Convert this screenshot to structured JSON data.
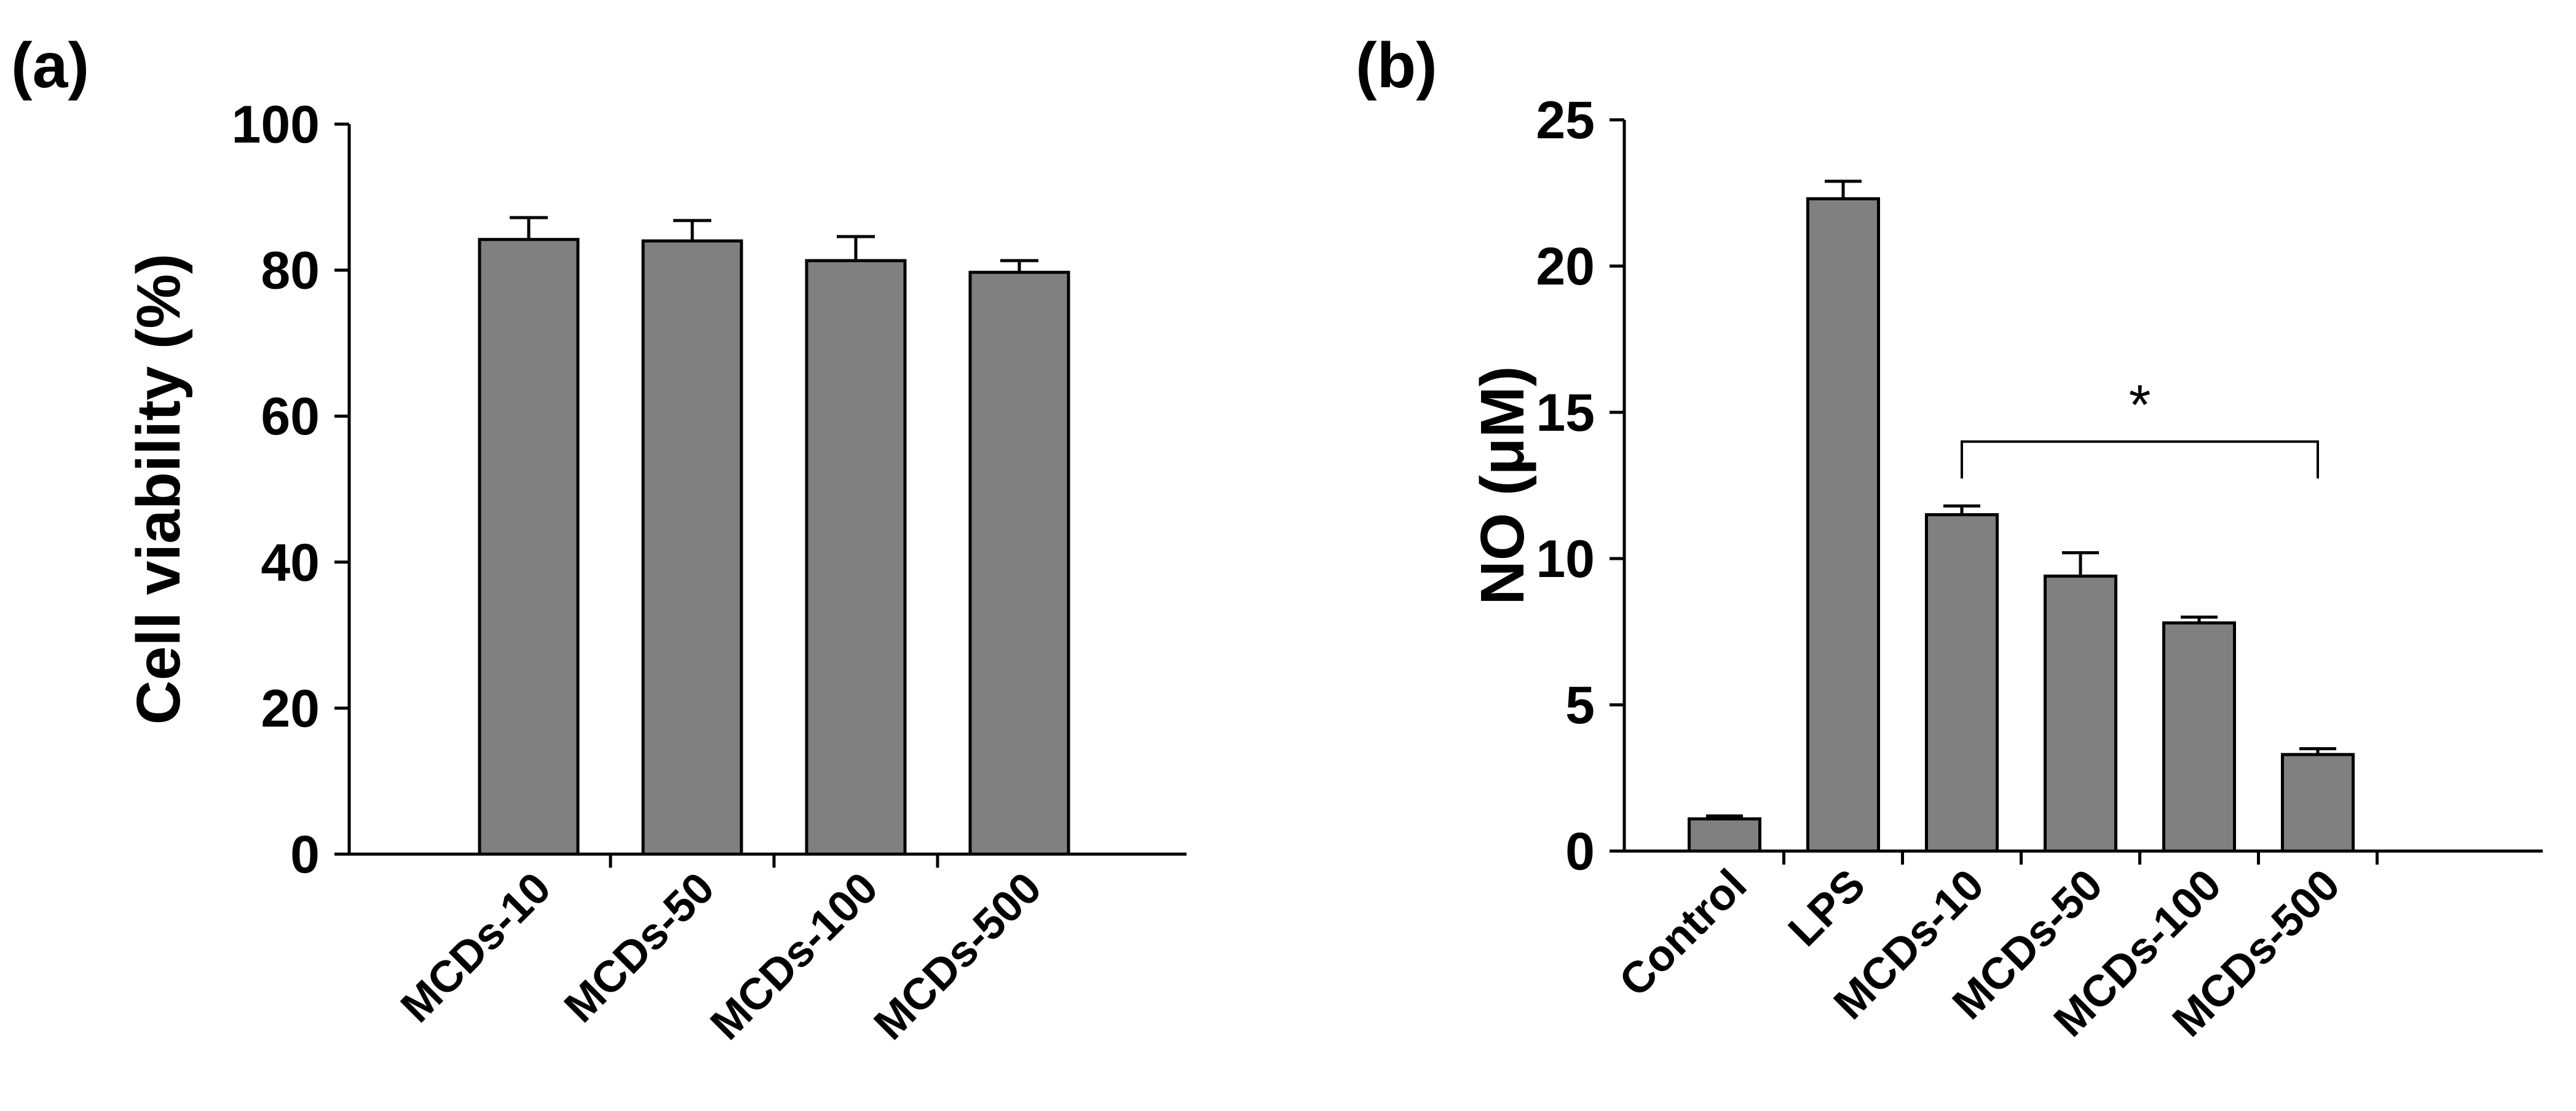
{
  "chart_data": [
    {
      "type": "bar",
      "panel_label": "(a)",
      "title": "",
      "xlabel": "",
      "ylabel": "Cell viability (%)",
      "ylim": [
        0,
        100
      ],
      "yticks": [
        0,
        20,
        40,
        60,
        80,
        100
      ],
      "categories": [
        "MCDs-10",
        "MCDs-50",
        "MCDs-100",
        "MCDs-500"
      ],
      "values": [
        84.2,
        84.0,
        81.3,
        79.7
      ],
      "errors": [
        3.0,
        2.8,
        3.3,
        1.6
      ],
      "bar_color": "#808080",
      "grid": false,
      "legend": "none"
    },
    {
      "type": "bar",
      "panel_label": "(b)",
      "title": "",
      "xlabel": "",
      "ylabel": "NO (μM)",
      "ylim": [
        0,
        25
      ],
      "yticks": [
        0,
        5,
        10,
        15,
        20,
        25
      ],
      "categories": [
        "Control",
        "LPS",
        "MCDs-10",
        "MCDs-50",
        "MCDs-100",
        "MCDs-500"
      ],
      "values": [
        1.1,
        22.3,
        11.5,
        9.4,
        7.8,
        3.3
      ],
      "errors": [
        0.1,
        0.6,
        0.3,
        0.8,
        0.2,
        0.2
      ],
      "bar_color": "#808080",
      "grid": false,
      "legend": "none",
      "annotations": [
        {
          "type": "significance-bracket",
          "text": "*",
          "from": "MCDs-10",
          "to": "MCDs-500",
          "y": 14.0
        }
      ]
    }
  ]
}
